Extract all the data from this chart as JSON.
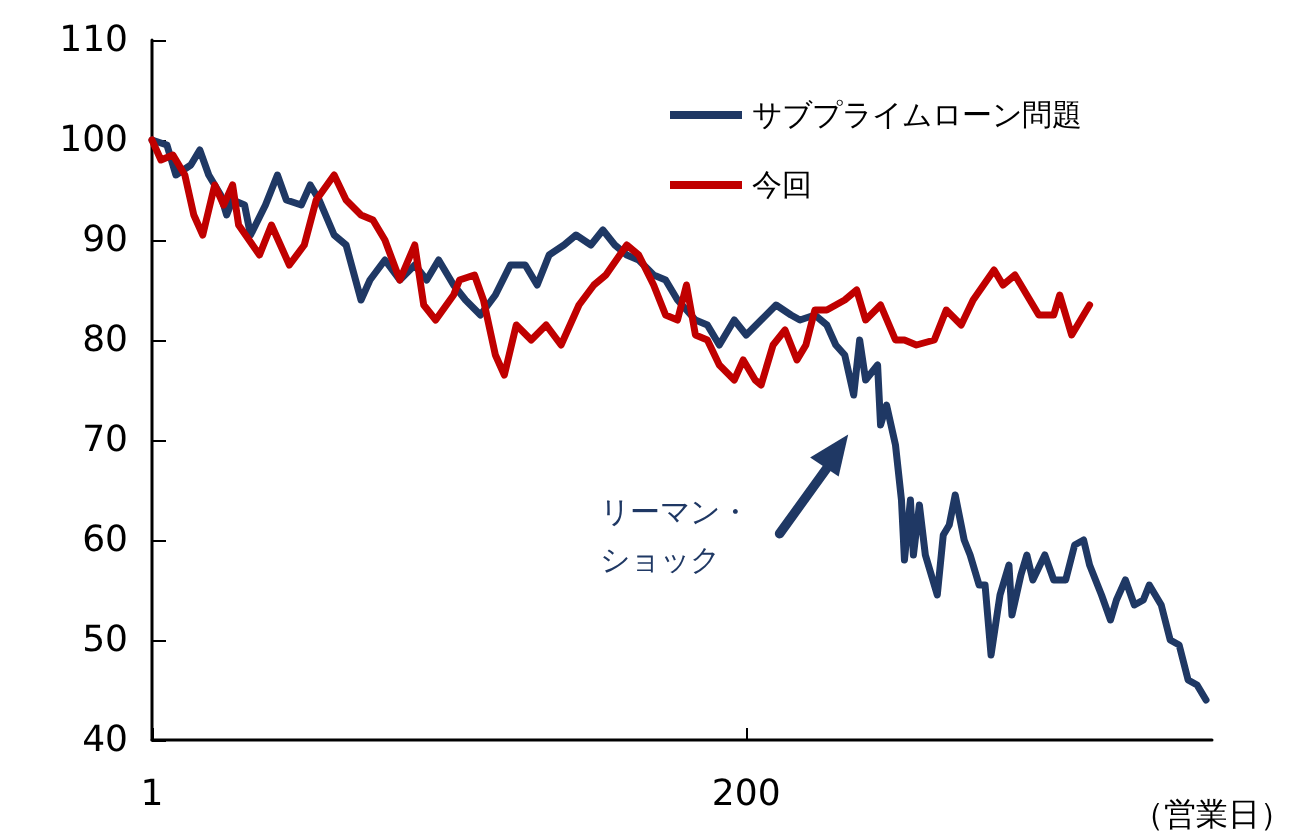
{
  "chart_data": {
    "type": "line",
    "xlabel": "（営業日）",
    "xlim": [
      1,
      356
    ],
    "xticks": [
      1,
      200
    ],
    "ylim": [
      40,
      110
    ],
    "yticks": [
      40,
      50,
      60,
      70,
      80,
      90,
      100,
      110
    ],
    "grid": false,
    "legend": "top right",
    "marker": "none",
    "line_style": "solid",
    "annotations": [
      "リーマン・ショック"
    ],
    "series": [
      {
        "name": "サブプライムローン問題",
        "color": "#1f3864",
        "x": [
          1,
          6,
          9,
          14,
          17,
          20,
          24,
          26,
          28,
          32,
          34,
          39,
          43,
          46,
          51,
          54,
          57,
          62,
          66,
          71,
          74,
          79,
          84,
          89,
          93,
          97,
          102,
          106,
          111,
          116,
          121,
          126,
          130,
          134,
          139,
          143,
          148,
          152,
          156,
          160,
          164,
          169,
          173,
          177,
          183,
          187,
          191,
          196,
          200,
          205,
          210,
          215,
          218,
          223,
          227,
          230,
          233,
          236,
          238,
          240,
          244,
          245,
          247,
          250,
          252,
          253,
          255,
          256,
          258,
          260,
          264,
          266,
          268,
          270,
          273,
          275,
          278,
          280,
          282,
          285,
          288,
          289,
          292,
          294,
          296,
          300,
          303,
          307,
          310,
          313,
          315,
          319,
          322,
          324,
          327,
          330,
          333,
          335,
          339,
          342,
          345,
          348,
          351,
          354
        ],
        "values": [
          100,
          99.5,
          96.5,
          97.5,
          99,
          96.5,
          94.5,
          92.5,
          94,
          93.5,
          90.5,
          93.5,
          96.5,
          94,
          93.5,
          95.5,
          94,
          90.5,
          89.5,
          84,
          86,
          88,
          86,
          87.5,
          86,
          88,
          85.5,
          84,
          82.5,
          84.5,
          87.5,
          87.5,
          85.5,
          88.5,
          89.5,
          90.5,
          89.5,
          91,
          89.5,
          88.5,
          88,
          86.5,
          86,
          84,
          82,
          81.5,
          79.5,
          82,
          80.5,
          82,
          83.5,
          82.5,
          82,
          82.5,
          81.5,
          79.5,
          78.5,
          74.5,
          80,
          76,
          77.5,
          71.5,
          73.5,
          69.5,
          64,
          58,
          64,
          58.5,
          63.5,
          58.5,
          54.5,
          60.5,
          61.5,
          64.5,
          60,
          58.5,
          55.5,
          55.5,
          48.5,
          54.5,
          57.5,
          52.5,
          56.5,
          58.5,
          56,
          58.5,
          56,
          56,
          59.5,
          60,
          57.5,
          54.5,
          52,
          54,
          56,
          53.5,
          54,
          55.5,
          53.5,
          50,
          49.5,
          46,
          45.5,
          44
        ]
      },
      {
        "name": "今回",
        "color": "#c00000",
        "x": [
          1,
          4,
          8,
          12,
          15,
          18,
          22,
          25,
          28,
          30,
          37,
          41,
          44,
          47,
          52,
          56,
          62,
          66,
          71,
          75,
          79,
          84,
          89,
          92,
          96,
          102,
          104,
          109,
          112,
          116,
          119,
          123,
          128,
          133,
          138,
          144,
          149,
          153,
          160,
          164,
          169,
          173,
          177,
          180,
          183,
          187,
          191,
          196,
          199,
          203,
          205,
          209,
          213,
          217,
          220,
          223,
          227,
          233,
          237,
          240,
          245,
          250,
          253,
          257,
          263,
          267,
          272,
          276,
          283,
          286,
          290,
          294,
          298,
          303,
          305,
          309,
          312,
          315
        ],
        "values": [
          100,
          98,
          98.5,
          96.5,
          92.5,
          90.5,
          95.5,
          93.5,
          95.5,
          91.5,
          88.5,
          91.5,
          89.5,
          87.5,
          89.5,
          94,
          96.5,
          94,
          92.5,
          92,
          90,
          86,
          89.5,
          83.5,
          82,
          84.5,
          86,
          86.5,
          84,
          78.5,
          76.5,
          81.5,
          80,
          81.5,
          79.5,
          83.5,
          85.5,
          86.5,
          89.5,
          88.5,
          85.5,
          82.5,
          82,
          85.5,
          80.5,
          80,
          77.5,
          76,
          78,
          76,
          75.5,
          79.5,
          81,
          78,
          79.5,
          83,
          83,
          84,
          85,
          82,
          83.5,
          80,
          80,
          79.5,
          80,
          83,
          81.5,
          84,
          87,
          85.5,
          86.5,
          84.5,
          82.5,
          82.5,
          84.5,
          80.5,
          82,
          83.5
        ]
      }
    ]
  }
}
